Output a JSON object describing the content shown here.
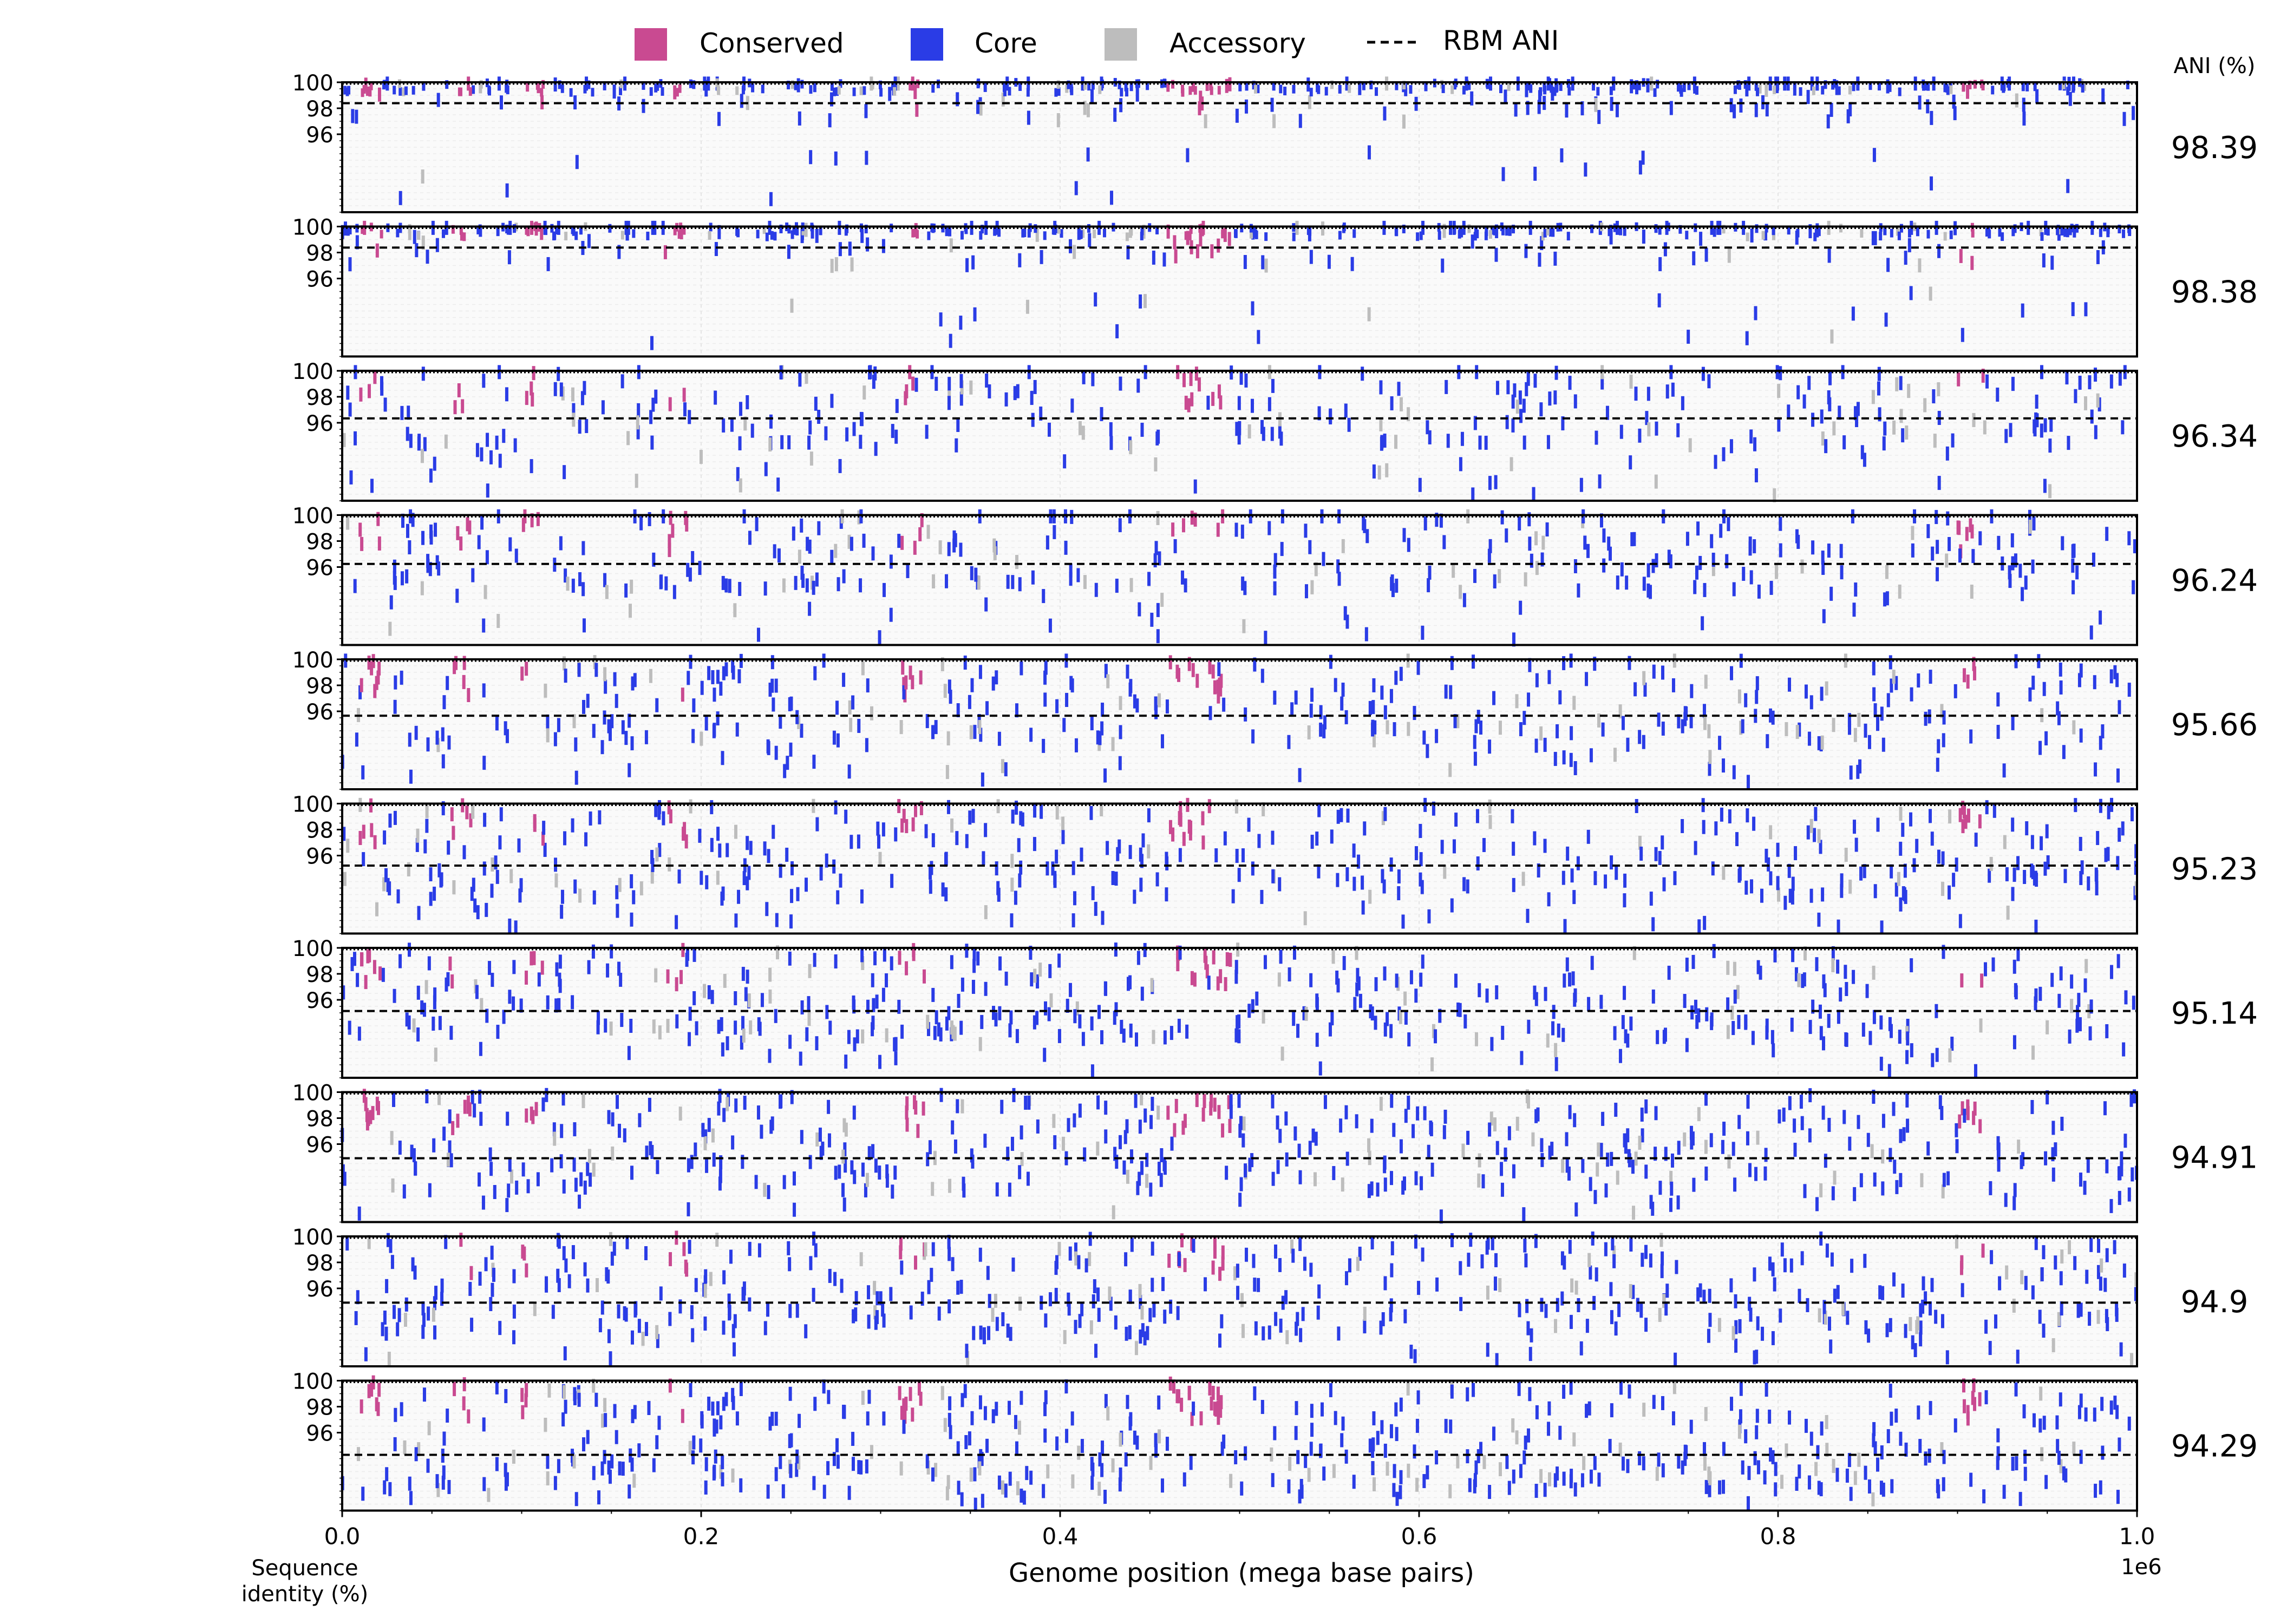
{
  "legend": {
    "items": [
      {
        "label": "Conserved",
        "color": "#C94A91",
        "kind": "swatch"
      },
      {
        "label": "Core",
        "color": "#2A3CE6",
        "kind": "swatch"
      },
      {
        "label": "Accessory",
        "color": "#BDBDBD",
        "kind": "swatch"
      },
      {
        "label": "RBM ANI",
        "color": "#000000",
        "kind": "dashed-line"
      }
    ]
  },
  "ani_header": "ANI (%)",
  "ylabel_lines": [
    "Sequence",
    "identity (%)"
  ],
  "xlabel": "Genome position (mega base pairs)",
  "x_offset_text": "1e6",
  "chart_data": {
    "type": "scatter",
    "subtype": "stacked strip plots of gene-level sequence identity along the genome (one panel per genome)",
    "xlabel": "Genome position (mega base pairs)",
    "x_scale_text": "1e6",
    "ylabel": "Sequence identity (%)",
    "xlim": [
      0,
      1000000
    ],
    "ylim": [
      90,
      100
    ],
    "xticks": [
      0,
      200000,
      400000,
      600000,
      800000,
      1000000
    ],
    "xtick_labels": [
      "0.0",
      "0.2",
      "0.4",
      "0.6",
      "0.8",
      "1.0"
    ],
    "yticks": [
      96,
      98,
      100
    ],
    "ytick_labels": [
      "96",
      "98",
      "100"
    ],
    "grid": true,
    "legend_position": "top",
    "categories": [
      "Conserved",
      "Core",
      "Accessory"
    ],
    "colors": {
      "Conserved": "#C94A91",
      "Core": "#2A3CE6",
      "Accessory": "#BDBDBD",
      "RBM ANI": "#000000"
    },
    "ani_column_label": "ANI (%)",
    "conserved_region_x": [
      [
        10000,
        22000
      ],
      [
        60000,
        72000
      ],
      [
        100000,
        112000
      ],
      [
        180000,
        192000
      ],
      [
        310000,
        325000
      ],
      [
        460000,
        495000
      ],
      [
        900000,
        915000
      ]
    ],
    "panels": [
      {
        "ani": 98.39,
        "ani_label": "98.39"
      },
      {
        "ani": 98.38,
        "ani_label": "98.38"
      },
      {
        "ani": 96.34,
        "ani_label": "96.34"
      },
      {
        "ani": 96.24,
        "ani_label": "96.24"
      },
      {
        "ani": 95.66,
        "ani_label": "95.66"
      },
      {
        "ani": 95.23,
        "ani_label": "95.23"
      },
      {
        "ani": 95.14,
        "ani_label": "95.14"
      },
      {
        "ani": 94.91,
        "ani_label": "94.91"
      },
      {
        "ani": 94.9,
        "ani_label": "94.9"
      },
      {
        "ani": 94.29,
        "ani_label": "94.29"
      }
    ]
  }
}
